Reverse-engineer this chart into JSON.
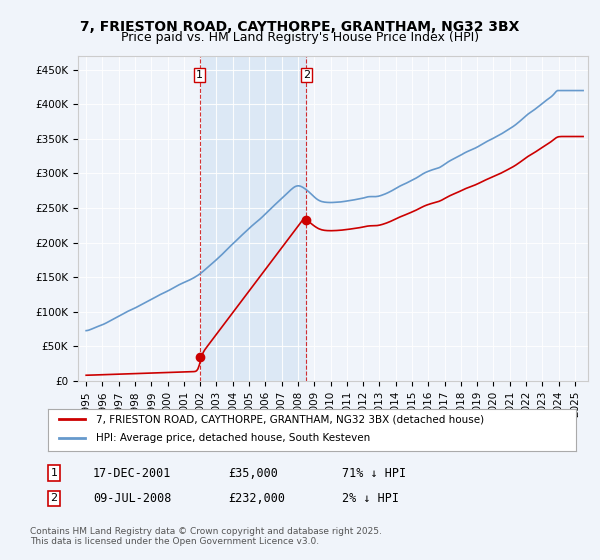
{
  "title": "7, FRIESTON ROAD, CAYTHORPE, GRANTHAM, NG32 3BX",
  "subtitle": "Price paid vs. HM Land Registry's House Price Index (HPI)",
  "legend_label_red": "7, FRIESTON ROAD, CAYTHORPE, GRANTHAM, NG32 3BX (detached house)",
  "legend_label_blue": "HPI: Average price, detached house, South Kesteven",
  "annotation1_label": "1",
  "annotation1_date": "17-DEC-2001",
  "annotation1_price": "£35,000",
  "annotation1_hpi": "71% ↓ HPI",
  "annotation2_label": "2",
  "annotation2_date": "09-JUL-2008",
  "annotation2_price": "£232,000",
  "annotation2_hpi": "2% ↓ HPI",
  "footer": "Contains HM Land Registry data © Crown copyright and database right 2025.\nThis data is licensed under the Open Government Licence v3.0.",
  "background_color": "#f0f4fa",
  "plot_bg_color": "#f0f4fa",
  "red_color": "#cc0000",
  "blue_color": "#6699cc",
  "shaded_region_color": "#dce8f5",
  "vline_color": "#cc0000",
  "ylim": [
    0,
    470000
  ],
  "yticks": [
    0,
    50000,
    100000,
    150000,
    200000,
    250000,
    300000,
    350000,
    400000,
    450000
  ]
}
